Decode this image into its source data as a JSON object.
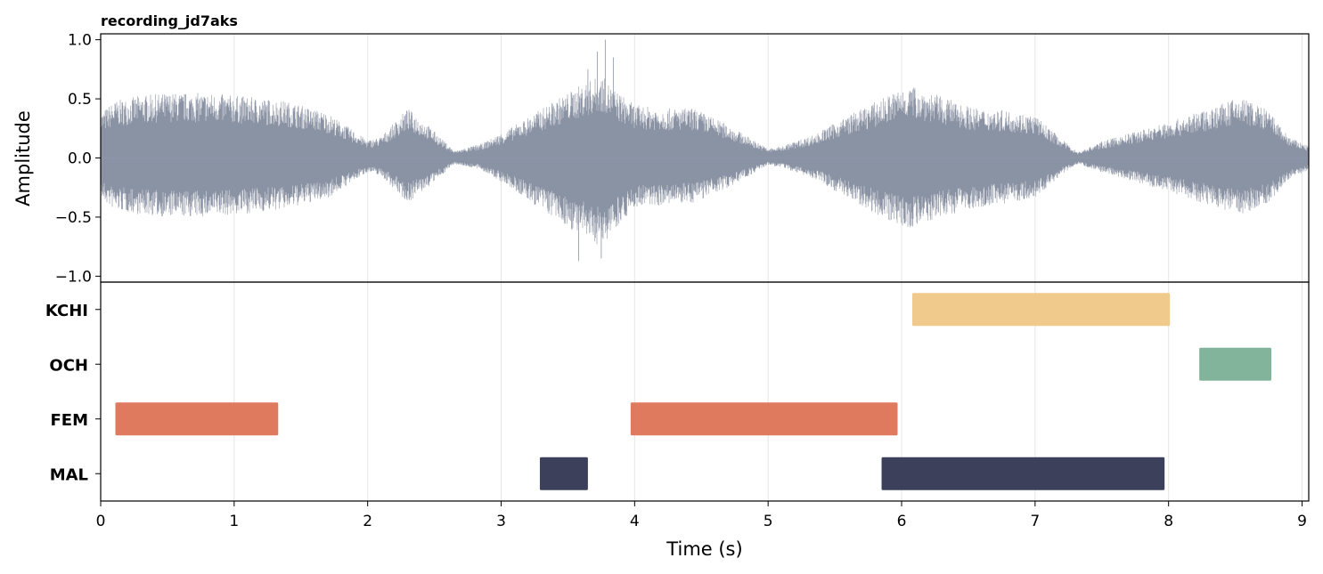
{
  "chart_data": {
    "title": "recording_jd7aks",
    "xlabel": "Time (s)",
    "xlim": [
      0,
      9.05
    ],
    "xticks": [
      0,
      1,
      2,
      3,
      4,
      5,
      6,
      7,
      8,
      9
    ],
    "xtick_labels": [
      "0",
      "1",
      "2",
      "3",
      "4",
      "5",
      "6",
      "7",
      "8",
      "9"
    ],
    "grid": "vertical",
    "panels": [
      {
        "type": "line",
        "content": "waveform",
        "ylabel": "Amplitude",
        "ylim": [
          -1.05,
          1.05
        ],
        "yticks": [
          1.0,
          0.5,
          0.0,
          -0.5,
          -1.0
        ],
        "ytick_labels": [
          "1.0",
          "0.5",
          "0.0",
          "−0.5",
          "−1.0"
        ],
        "color": "#8a93a4",
        "envelope": {
          "t": [
            0.0,
            0.1,
            0.3,
            0.5,
            0.8,
            1.1,
            1.4,
            1.7,
            2.0,
            2.1,
            2.3,
            2.45,
            2.65,
            2.85,
            3.05,
            3.25,
            3.45,
            3.6,
            3.75,
            3.85,
            4.0,
            4.2,
            4.45,
            4.7,
            5.0,
            5.1,
            5.35,
            5.6,
            5.85,
            6.05,
            6.3,
            6.55,
            6.8,
            7.0,
            7.2,
            7.32,
            7.5,
            7.8,
            8.1,
            8.35,
            8.55,
            8.75,
            8.9,
            9.05
          ],
          "pos": [
            0.38,
            0.48,
            0.53,
            0.55,
            0.55,
            0.52,
            0.48,
            0.38,
            0.15,
            0.18,
            0.42,
            0.28,
            0.06,
            0.12,
            0.24,
            0.38,
            0.52,
            0.62,
            0.7,
            0.58,
            0.45,
            0.42,
            0.42,
            0.28,
            0.08,
            0.1,
            0.2,
            0.36,
            0.5,
            0.62,
            0.52,
            0.42,
            0.4,
            0.36,
            0.16,
            0.05,
            0.14,
            0.24,
            0.34,
            0.44,
            0.52,
            0.4,
            0.18,
            0.1
          ],
          "neg": [
            0.35,
            0.44,
            0.48,
            0.5,
            0.5,
            0.47,
            0.43,
            0.34,
            0.12,
            0.15,
            0.38,
            0.25,
            0.05,
            0.1,
            0.24,
            0.4,
            0.55,
            0.66,
            0.75,
            0.6,
            0.42,
            0.4,
            0.38,
            0.25,
            0.06,
            0.08,
            0.18,
            0.34,
            0.5,
            0.6,
            0.5,
            0.42,
            0.38,
            0.34,
            0.14,
            0.05,
            0.12,
            0.22,
            0.32,
            0.42,
            0.48,
            0.38,
            0.18,
            0.1
          ]
        },
        "peaks": [
          {
            "t": 3.78,
            "y": 1.0
          },
          {
            "t": 3.72,
            "y": 0.9
          },
          {
            "t": 3.84,
            "y": 0.85
          },
          {
            "t": 3.58,
            "y": -0.87
          },
          {
            "t": 3.75,
            "y": -0.85
          },
          {
            "t": 3.65,
            "y": 0.75
          }
        ]
      },
      {
        "type": "timeline",
        "content": "speaker-segments",
        "rows": [
          "KCHI",
          "OCH",
          "FEM",
          "MAL"
        ],
        "colors": {
          "KCHI": "#f0c98c",
          "OCH": "#82b39b",
          "FEM": "#e07a5f",
          "MAL": "#3d405b"
        },
        "segments": [
          {
            "speaker": "KCHI",
            "start": 6.08,
            "end": 8.01
          },
          {
            "speaker": "OCH",
            "start": 8.23,
            "end": 8.77
          },
          {
            "speaker": "FEM",
            "start": 0.11,
            "end": 1.33
          },
          {
            "speaker": "FEM",
            "start": 3.97,
            "end": 5.97
          },
          {
            "speaker": "MAL",
            "start": 3.29,
            "end": 3.65
          },
          {
            "speaker": "MAL",
            "start": 5.85,
            "end": 7.97
          }
        ]
      }
    ]
  }
}
